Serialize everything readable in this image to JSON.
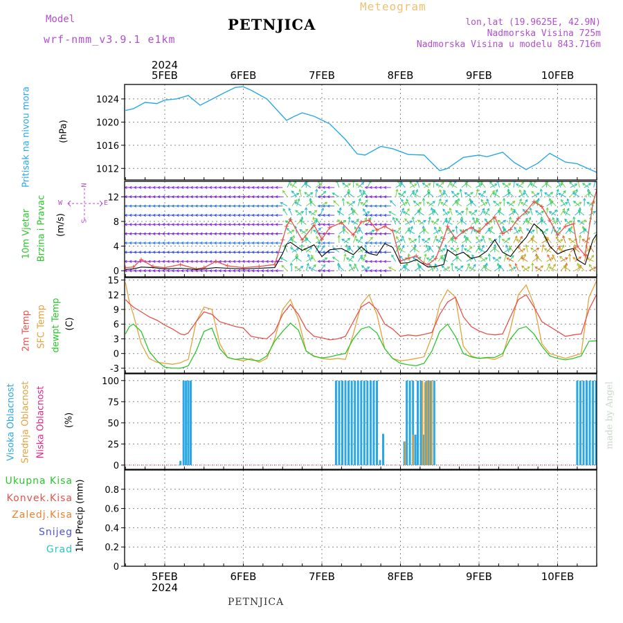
{
  "header": {
    "model_label": "Model",
    "model_name": "wrf-nmm_v3.9.1 e1km",
    "title": "PETNJICA",
    "meteogram_label": "Meteogram",
    "lonlat": "lon,lat (19.9625E, 42.9N)",
    "altitude": "Nadmorska Visina 725m",
    "model_altitude": "Nadmorska Visina u modelu 843.716m"
  },
  "time_axis": {
    "year": "2024",
    "labels": [
      "5FEB",
      "6FEB",
      "7FEB",
      "8FEB",
      "9FEB",
      "10FEB"
    ]
  },
  "footer": {
    "station": "PETNJICA",
    "credit": "made by Angel"
  },
  "colors": {
    "pressure": "#2aa7e6",
    "wind_speed": "#000000",
    "wind_gust": "#e8514a",
    "temp_2m": "#e8514a",
    "temp_sfc": "#e4a23c",
    "dewpoint": "#29c629",
    "cloud_high": "#2aa7e6",
    "cloud_mid": "#e4a23c",
    "cloud_low": "#e0278a",
    "precip_total": "#29c629",
    "precip_conv": "#e8514a",
    "precip_frz": "#f08030",
    "precip_snow": "#5050e0",
    "precip_hail": "#29c6c6"
  },
  "chart_data": [
    {
      "type": "line",
      "name": "pressure",
      "ylabel": [
        "Pritisak na nivou mora",
        "(hPa)"
      ],
      "ylim": [
        1010,
        1026.5
      ],
      "yticks": [
        1012,
        1016,
        1020,
        1024
      ],
      "x_days": [
        4.5,
        4.6,
        4.75,
        4.9,
        5.0,
        5.15,
        5.3,
        5.45,
        5.55,
        5.75,
        5.9,
        6.0,
        6.1,
        6.3,
        6.55,
        6.65,
        6.75,
        6.9,
        7.1,
        7.3,
        7.45,
        7.55,
        7.75,
        7.9,
        8.1,
        8.3,
        8.5,
        8.6,
        8.8,
        9.0,
        9.1,
        9.3,
        9.45,
        9.6,
        9.75,
        9.9,
        10.1,
        10.25,
        10.4,
        10.5
      ],
      "series": [
        {
          "values": [
            1022.0,
            1022.3,
            1023.4,
            1023.2,
            1023.8,
            1024.0,
            1024.6,
            1022.9,
            1023.6,
            1025.0,
            1026.0,
            1026.1,
            1025.5,
            1024.0,
            1020.3,
            1021.0,
            1021.6,
            1021.0,
            1019.7,
            1017.0,
            1014.5,
            1014.3,
            1015.8,
            1015.4,
            1014.4,
            1014.3,
            1011.6,
            1012.0,
            1013.9,
            1014.3,
            1014.0,
            1014.8,
            1013.0,
            1011.8,
            1012.9,
            1014.6,
            1013.1,
            1012.8,
            1011.9,
            1011.3
          ]
        }
      ]
    },
    {
      "type": "line",
      "name": "wind",
      "ylabel": [
        "10m Vjetar",
        "Brzina i Pravac",
        "(m/s)"
      ],
      "compass": [
        "N",
        "W",
        "E",
        "S"
      ],
      "ylim": [
        -1,
        14.5
      ],
      "yticks": [
        0,
        4,
        8,
        12
      ],
      "x_days": [
        4.5,
        4.6,
        4.7,
        4.85,
        5.0,
        5.2,
        5.4,
        5.5,
        5.65,
        5.8,
        6.0,
        6.2,
        6.4,
        6.5,
        6.55,
        6.6,
        6.75,
        6.9,
        7.0,
        7.1,
        7.25,
        7.4,
        7.5,
        7.6,
        7.7,
        7.8,
        7.9,
        8.0,
        8.1,
        8.2,
        8.3,
        8.35,
        8.45,
        8.55,
        8.6,
        8.7,
        8.8,
        8.9,
        9.0,
        9.1,
        9.2,
        9.3,
        9.4,
        9.5,
        9.6,
        9.7,
        9.8,
        9.9,
        10.0,
        10.1,
        10.2,
        10.25,
        10.35,
        10.45,
        10.5
      ],
      "series": [
        {
          "name": "speed",
          "values": [
            0.2,
            0.3,
            0.6,
            0.5,
            0.3,
            0.4,
            0.2,
            0.3,
            0.5,
            0.4,
            0.3,
            0.4,
            0.5,
            2.8,
            4.3,
            4.6,
            3.3,
            4.2,
            2.3,
            3.4,
            3.6,
            2.6,
            3.9,
            2.8,
            2.5,
            4.4,
            3.8,
            1.2,
            1.3,
            1.8,
            1.0,
            0.6,
            0.7,
            1.0,
            3.4,
            2.5,
            3.0,
            2.0,
            2.3,
            3.2,
            5.0,
            3.0,
            2.3,
            4.0,
            5.4,
            7.6,
            6.5,
            4.0,
            2.7,
            3.3,
            3.6,
            1.8,
            1.0,
            5.0,
            6.0
          ]
        },
        {
          "name": "gust",
          "values": [
            0.5,
            0.6,
            1.8,
            0.7,
            0.5,
            1.0,
            0.3,
            0.5,
            1.5,
            0.8,
            0.5,
            0.7,
            1.0,
            5.0,
            7.2,
            8.3,
            5.0,
            7.4,
            5.1,
            7.0,
            7.8,
            5.8,
            7.9,
            8.2,
            6.6,
            7.2,
            6.5,
            1.6,
            2.0,
            2.4,
            1.2,
            1.0,
            2.0,
            5.2,
            7.2,
            5.2,
            6.4,
            7.0,
            6.3,
            7.6,
            8.7,
            6.0,
            6.7,
            8.5,
            9.6,
            11.2,
            10.4,
            8.2,
            5.8,
            7.2,
            7.6,
            4.0,
            2.5,
            11.0,
            13.2
          ]
        }
      ]
    },
    {
      "type": "line",
      "name": "temperature",
      "ylabel": [
        "2m Temp",
        "SFC Temp",
        "dewpt Temp",
        "(C)"
      ],
      "ylim": [
        -4,
        15.5
      ],
      "yticks": [
        -3,
        0,
        3,
        6,
        9,
        12,
        15
      ],
      "x_days": [
        4.5,
        4.55,
        4.6,
        4.7,
        4.8,
        4.9,
        5.0,
        5.1,
        5.2,
        5.25,
        5.3,
        5.4,
        5.5,
        5.6,
        5.7,
        5.8,
        5.9,
        6.0,
        6.1,
        6.2,
        6.3,
        6.4,
        6.5,
        6.6,
        6.7,
        6.8,
        6.9,
        7.0,
        7.1,
        7.2,
        7.3,
        7.4,
        7.5,
        7.6,
        7.7,
        7.8,
        7.9,
        8.0,
        8.1,
        8.2,
        8.3,
        8.4,
        8.5,
        8.6,
        8.7,
        8.8,
        8.9,
        9.0,
        9.1,
        9.2,
        9.3,
        9.4,
        9.5,
        9.6,
        9.7,
        9.8,
        9.9,
        10.0,
        10.1,
        10.2,
        10.3,
        10.4,
        10.5
      ],
      "series": [
        {
          "name": "temp_2m",
          "values": [
            11.0,
            10.2,
            9.5,
            8.5,
            7.5,
            6.8,
            5.8,
            5.0,
            4.0,
            3.8,
            4.2,
            6.5,
            8.5,
            8.0,
            6.5,
            6.0,
            5.5,
            5.2,
            3.5,
            3.2,
            3.0,
            4.5,
            8.0,
            10.0,
            8.0,
            5.0,
            3.5,
            3.2,
            2.8,
            3.0,
            3.5,
            6.5,
            9.5,
            10.5,
            9.0,
            6.0,
            5.0,
            3.5,
            3.8,
            3.6,
            3.9,
            4.3,
            8.0,
            10.5,
            11.5,
            7.5,
            5.5,
            4.6,
            4.0,
            3.8,
            4.0,
            7.5,
            11.0,
            12.0,
            9.5,
            6.5,
            5.5,
            4.5,
            3.5,
            3.8,
            4.0,
            9.0,
            12.2
          ]
        },
        {
          "name": "temp_sfc",
          "values": [
            14.5,
            10.5,
            8.0,
            2.0,
            -1.0,
            -1.8,
            -2.0,
            -2.2,
            -1.9,
            -1.5,
            -1.2,
            6.5,
            9.5,
            9.0,
            2.0,
            -0.8,
            -1.2,
            -1.5,
            -1.0,
            -1.8,
            -1.0,
            3.0,
            9.0,
            11.0,
            7.0,
            0.5,
            -0.5,
            -1.0,
            -1.2,
            -1.0,
            -1.2,
            4.0,
            10.0,
            12.0,
            8.0,
            1.0,
            -1.0,
            -1.5,
            -1.3,
            -1.0,
            -0.7,
            3.5,
            10.0,
            13.0,
            11.5,
            1.5,
            -0.5,
            -1.0,
            -0.9,
            -1.2,
            -0.5,
            5.0,
            12.0,
            14.0,
            10.0,
            2.0,
            0.0,
            -0.5,
            -1.0,
            -0.5,
            0.0,
            11.5,
            15.0
          ]
        },
        {
          "name": "dewpoint",
          "values": [
            4.0,
            5.5,
            6.0,
            4.5,
            0.5,
            -1.5,
            -2.8,
            -3.0,
            -3.0,
            -2.8,
            -2.5,
            0.5,
            4.5,
            5.2,
            1.0,
            -0.8,
            -1.2,
            -1.0,
            -1.3,
            -1.5,
            -0.5,
            2.5,
            4.5,
            6.2,
            4.8,
            0.5,
            -0.6,
            -0.9,
            -0.7,
            -0.3,
            0.0,
            3.0,
            5.0,
            5.5,
            4.2,
            1.0,
            -1.0,
            -2.0,
            -2.3,
            -2.5,
            -2.0,
            0.5,
            4.5,
            6.0,
            3.5,
            0.0,
            -0.7,
            -1.0,
            -0.8,
            -0.8,
            0.0,
            3.0,
            5.0,
            5.5,
            4.0,
            1.5,
            -0.5,
            -1.0,
            -1.3,
            -1.0,
            -0.5,
            2.5,
            2.6
          ]
        }
      ]
    },
    {
      "type": "bar",
      "name": "cloud_cover",
      "ylabel": [
        "Visoka Oblacnost",
        "Srednja Oblacnost",
        "Niska Oblacnost",
        "(%)"
      ],
      "ylim": [
        -5,
        108
      ],
      "yticks": [
        0,
        25,
        50,
        75,
        100
      ],
      "series": [
        {
          "name": "high",
          "bars": [
            [
              5.2,
              5
            ],
            [
              5.24,
              100
            ],
            [
              5.27,
              100
            ],
            [
              5.3,
              100
            ],
            [
              5.33,
              100
            ],
            [
              7.18,
              100
            ],
            [
              7.22,
              100
            ],
            [
              7.26,
              100
            ],
            [
              7.3,
              100
            ],
            [
              7.34,
              100
            ],
            [
              7.38,
              100
            ],
            [
              7.42,
              100
            ],
            [
              7.46,
              100
            ],
            [
              7.5,
              100
            ],
            [
              7.54,
              100
            ],
            [
              7.58,
              100
            ],
            [
              7.62,
              100
            ],
            [
              7.66,
              100
            ],
            [
              7.7,
              100
            ],
            [
              7.74,
              6
            ],
            [
              7.78,
              37
            ],
            [
              8.05,
              28
            ],
            [
              8.08,
              100
            ],
            [
              8.12,
              100
            ],
            [
              8.16,
              100
            ],
            [
              8.19,
              36
            ],
            [
              8.22,
              100
            ],
            [
              8.26,
              100
            ],
            [
              8.29,
              36
            ],
            [
              8.33,
              100
            ],
            [
              8.36,
              100
            ],
            [
              8.39,
              100
            ],
            [
              8.43,
              100
            ],
            [
              10.25,
              100
            ],
            [
              10.29,
              100
            ],
            [
              10.33,
              100
            ],
            [
              10.37,
              100
            ],
            [
              10.41,
              100
            ],
            [
              10.45,
              100
            ],
            [
              10.49,
              100
            ]
          ]
        },
        {
          "name": "mid",
          "bars": [
            [
              8.06,
              28
            ],
            [
              8.16,
              36
            ],
            [
              8.28,
              100
            ],
            [
              8.31,
              98
            ],
            [
              8.34,
              100
            ],
            [
              8.37,
              100
            ],
            [
              8.4,
              100
            ]
          ]
        },
        {
          "name": "low",
          "bars": []
        }
      ]
    },
    {
      "type": "bar",
      "name": "precipitation",
      "ylabel": [
        "1hr Precip (mm)"
      ],
      "legend": [
        "Ukupna Kisa",
        "Konvek.Kisa",
        "Zaledj.Kisa",
        "Snijeg",
        "Grad"
      ],
      "ylim": [
        0,
        1.0
      ],
      "yticks": [
        0,
        0.2,
        0.4,
        0.6,
        0.8
      ],
      "series": []
    }
  ]
}
